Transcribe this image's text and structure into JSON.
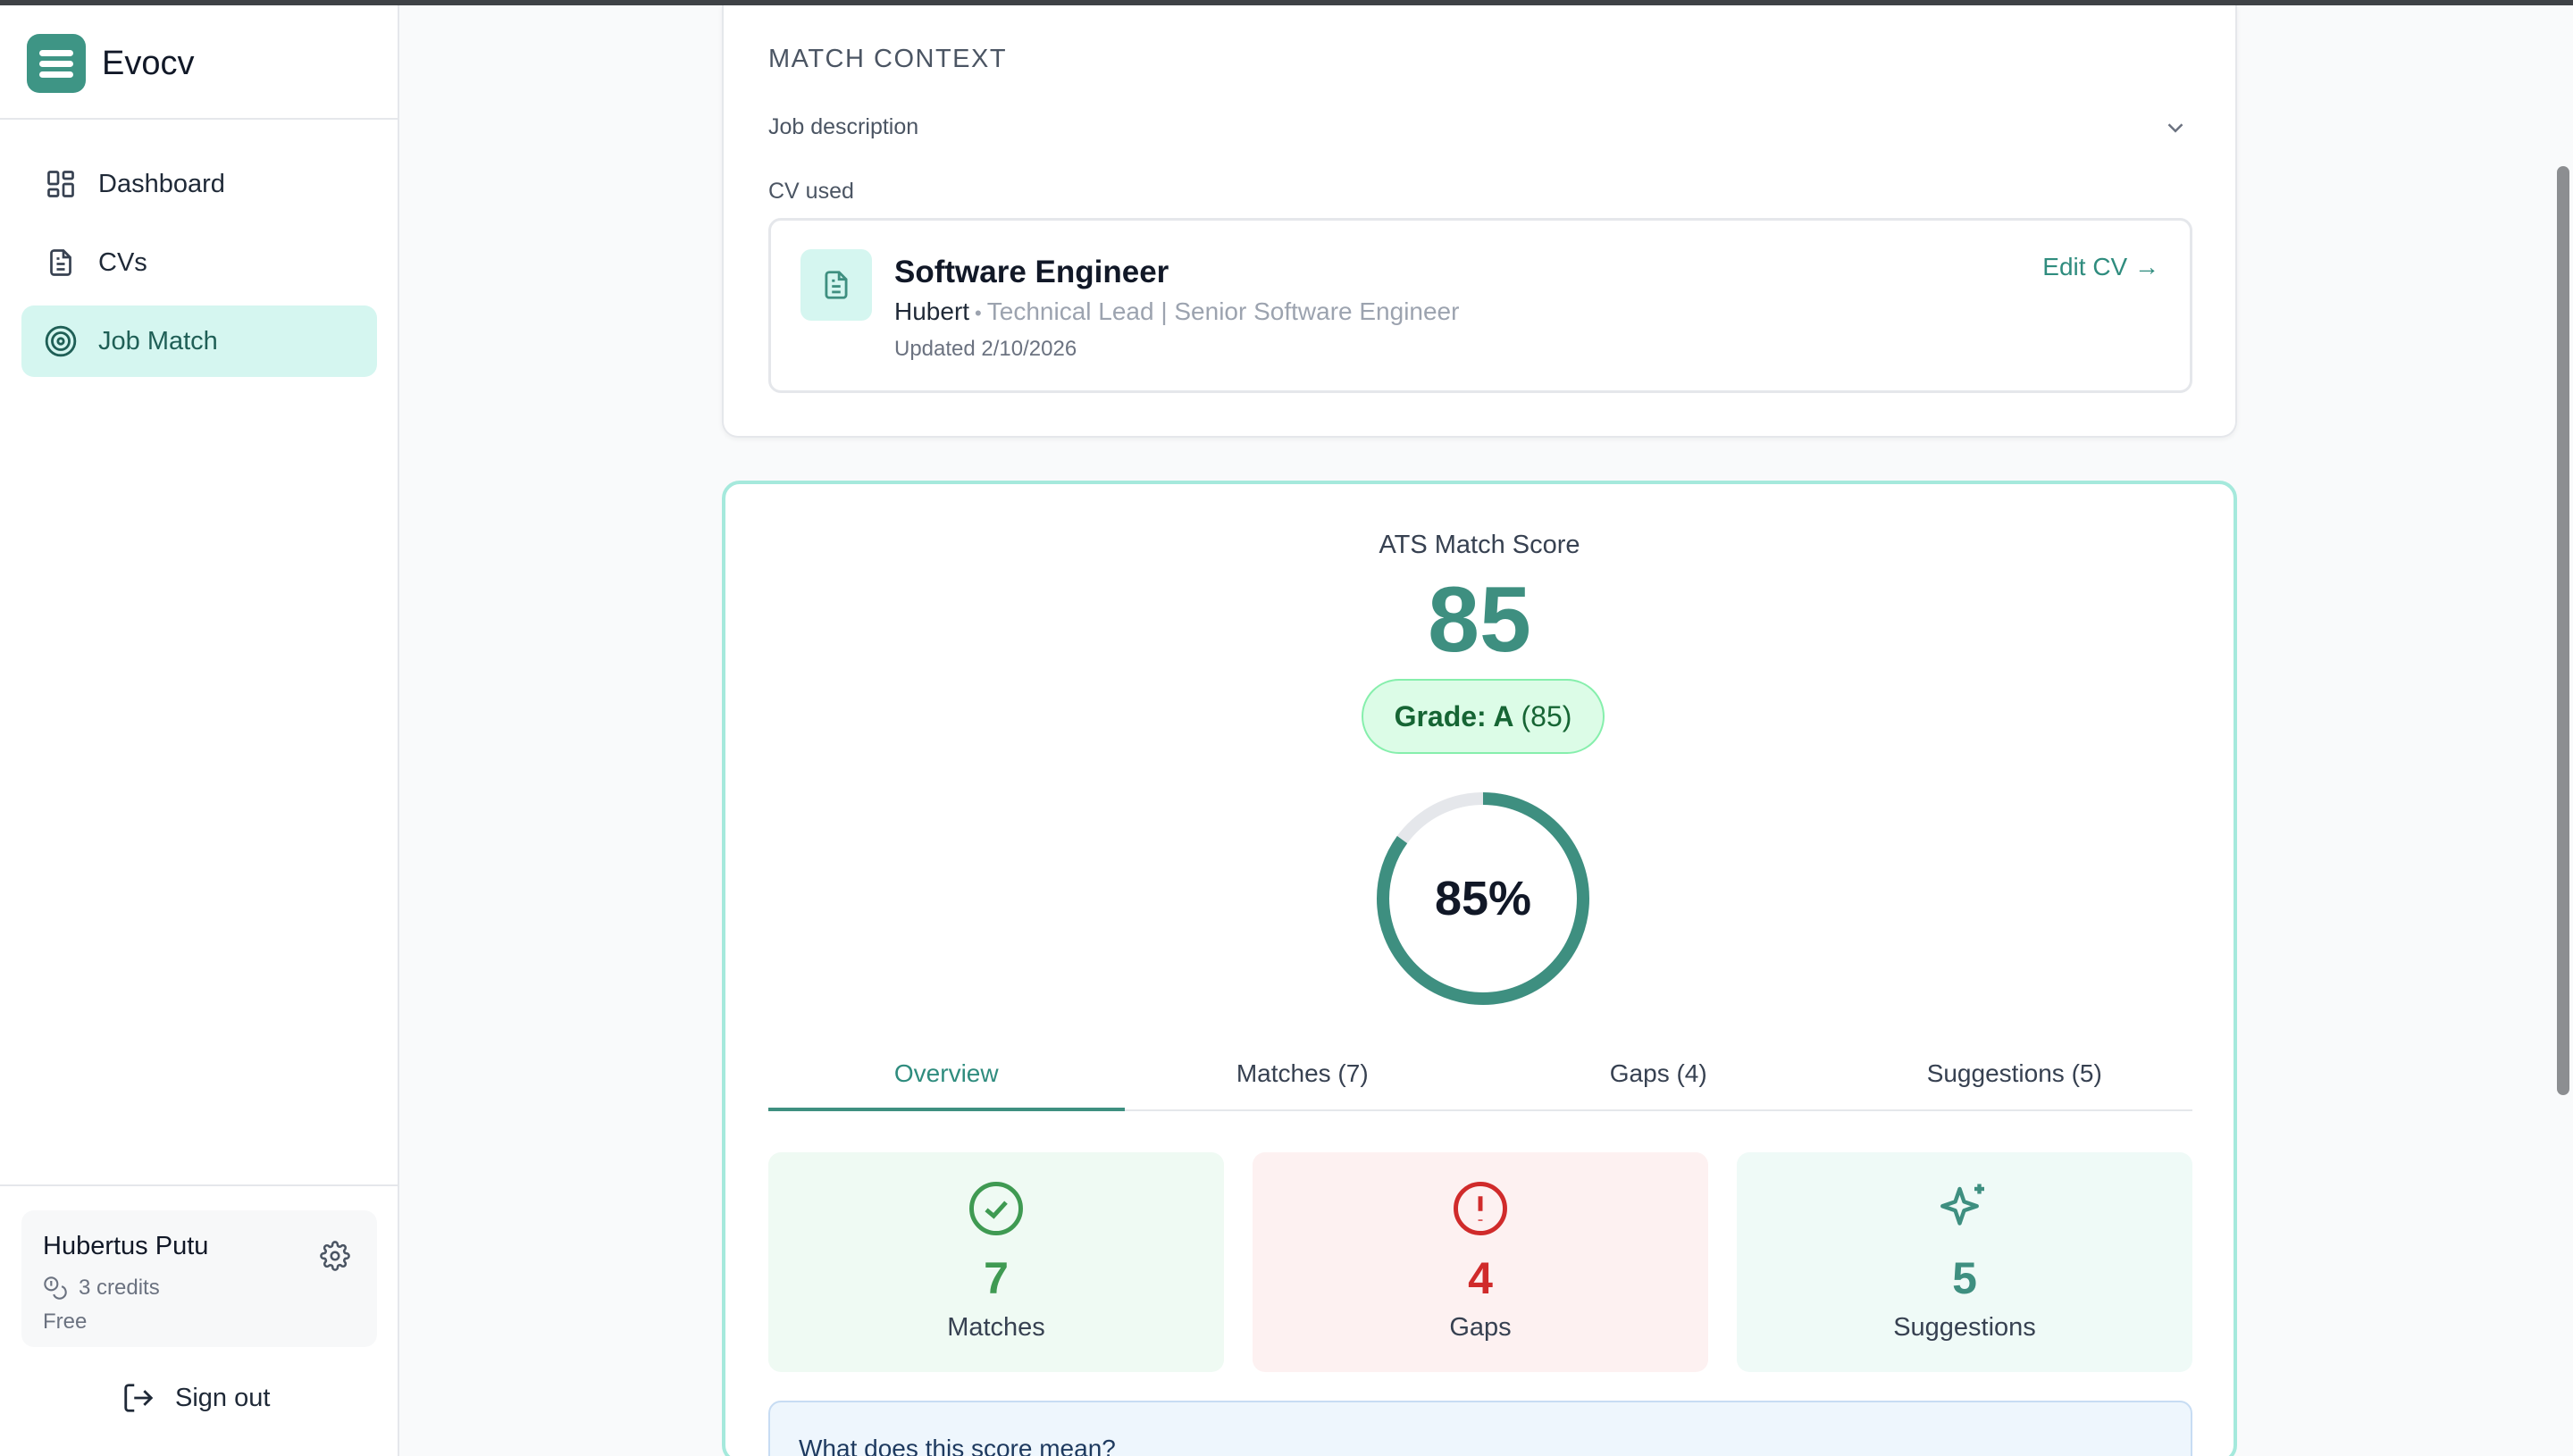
{
  "app": {
    "name": "Evocv"
  },
  "sidebar": {
    "items": [
      {
        "label": "Dashboard",
        "icon": "dashboard-icon"
      },
      {
        "label": "CVs",
        "icon": "document-icon"
      },
      {
        "label": "Job Match",
        "icon": "target-icon",
        "active": true
      }
    ],
    "user": {
      "name": "Hubertus Putu",
      "credits": "3 credits",
      "plan": "Free"
    },
    "sign_out": "Sign out"
  },
  "context": {
    "title": "MATCH CONTEXT",
    "job_description_label": "Job description",
    "cv_used_label": "CV used",
    "cv": {
      "title": "Software Engineer",
      "owner": "Hubert",
      "role": "Technical Lead | Senior Software Engineer",
      "updated": "Updated 2/10/2026",
      "edit_label": "Edit CV →"
    }
  },
  "score": {
    "label": "ATS Match Score",
    "value": "85",
    "grade_prefix": "Grade: A",
    "grade_suffix": "(85)",
    "percent_text": "85%",
    "percent": 85
  },
  "tabs": [
    {
      "label": "Overview",
      "active": true
    },
    {
      "label": "Matches (7)"
    },
    {
      "label": "Gaps (4)"
    },
    {
      "label": "Suggestions (5)"
    }
  ],
  "stats": [
    {
      "value": "7",
      "label": "Matches",
      "icon": "check-circle-icon"
    },
    {
      "value": "4",
      "label": "Gaps",
      "icon": "alert-circle-icon"
    },
    {
      "value": "5",
      "label": "Suggestions",
      "icon": "sparkles-icon"
    }
  ],
  "info": {
    "title": "What does this score mean?"
  },
  "colors": {
    "accent": "#3e8f80",
    "accent_light": "#d5f6f0",
    "success": "#3f9a52",
    "danger": "#d02b2b"
  }
}
